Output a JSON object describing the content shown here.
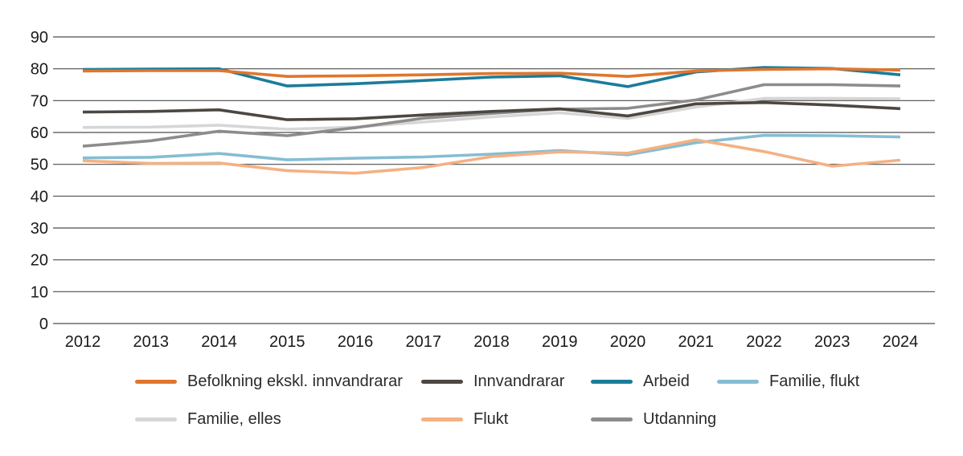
{
  "chart_data": {
    "type": "line",
    "x": [
      2012,
      2013,
      2014,
      2015,
      2016,
      2017,
      2018,
      2019,
      2020,
      2021,
      2022,
      2023,
      2024
    ],
    "ylim": [
      0,
      90
    ],
    "yticks": [
      0,
      10,
      20,
      30,
      40,
      50,
      60,
      70,
      80,
      90
    ],
    "grid": "horizontal-only",
    "gridline_color": "#4d4d4d",
    "legend_position": "bottom",
    "series": [
      {
        "name": "Befolkning ekskl. innvandrarar",
        "color": "#e0762d",
        "values": [
          79.3,
          79.4,
          79.4,
          77.6,
          77.8,
          78.1,
          78.5,
          78.6,
          77.6,
          79.3,
          79.8,
          80.0,
          79.6
        ]
      },
      {
        "name": "Innvandrarar",
        "color": "#4d4742",
        "values": [
          66.4,
          66.6,
          67.1,
          64.0,
          64.3,
          65.5,
          66.6,
          67.4,
          65.2,
          69.0,
          69.4,
          68.6,
          67.5
        ]
      },
      {
        "name": "Arbeid",
        "color": "#1b7c99",
        "values": [
          79.8,
          79.9,
          80.0,
          74.6,
          75.3,
          76.3,
          77.4,
          77.8,
          74.4,
          79.0,
          80.4,
          80.1,
          78.1
        ]
      },
      {
        "name": "Familie, flukt",
        "color": "#85bdd3",
        "values": [
          52.0,
          52.2,
          53.4,
          51.4,
          51.9,
          52.3,
          53.2,
          54.3,
          53.0,
          56.8,
          59.1,
          59.0,
          58.6
        ]
      },
      {
        "name": "Familie, elles",
        "color": "#d6d6d6",
        "values": [
          61.6,
          61.7,
          62.3,
          61.0,
          61.7,
          63.3,
          64.9,
          66.2,
          64.4,
          68.0,
          70.7,
          70.7,
          70.6
        ]
      },
      {
        "name": "Flukt",
        "color": "#f4b183",
        "values": [
          51.1,
          50.3,
          50.4,
          48.0,
          47.2,
          49.0,
          52.4,
          53.9,
          53.5,
          57.7,
          54.0,
          49.4,
          51.3
        ]
      },
      {
        "name": "Utdanning",
        "color": "#8c8c8c",
        "values": [
          55.7,
          57.4,
          60.4,
          59.0,
          61.5,
          64.5,
          66.0,
          67.3,
          67.6,
          70.2,
          75.0,
          75.0,
          74.6
        ]
      }
    ],
    "legend_rows": [
      [
        0,
        1,
        2,
        3
      ],
      [
        4,
        5,
        6
      ]
    ],
    "draw_order": [
      4,
      6,
      1,
      3,
      5,
      2,
      0
    ]
  }
}
